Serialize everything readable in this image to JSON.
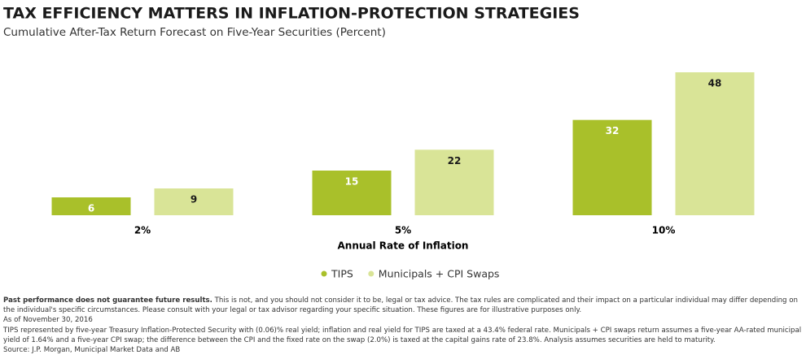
{
  "chart_data": {
    "type": "bar",
    "title": "TAX EFFICIENCY MATTERS IN INFLATION-PROTECTION STRATEGIES",
    "subtitle": "Cumulative After-Tax Return Forecast on Five-Year Securities (Percent)",
    "x_label": "Annual Rate of Inflation",
    "categories": [
      "2%",
      "5%",
      "10%"
    ],
    "series": [
      {
        "name": "TIPS",
        "color": "#a9c02a",
        "values": [
          6,
          15,
          32
        ]
      },
      {
        "name": "Municipals + CPI Swaps",
        "color": "#d9e497",
        "values": [
          9,
          22,
          48
        ]
      }
    ]
  },
  "footnotes": {
    "bold": "Past performance does not guarantee future results.",
    "disclaimer": "This is not, and you should not consider it to be, legal or tax advice. The tax rules are complicated and their impact on a particular individual may differ depending on the individual's specific circumstances. Please consult with your legal or tax advisor regarding your specific situation. These figures are for illustrative purposes only.",
    "as_of": "As of November 30, 2016",
    "detail": "TIPS represented by five-year Treasury Inflation-Protected Security with (0.06)% real yield; inflation and real yield for TIPS are taxed at a 43.4% federal rate. Municipals + CPI swaps return assumes a five-year AA-rated municipal yield of 1.64% and a five-year CPI swap; the difference between the CPI and the fixed rate on the swap (2.0%) is taxed at the capital gains rate of 23.8%. Analysis assumes securities are held to maturity.",
    "source": "Source: J.P. Morgan, Municipal Market Data and AB"
  }
}
